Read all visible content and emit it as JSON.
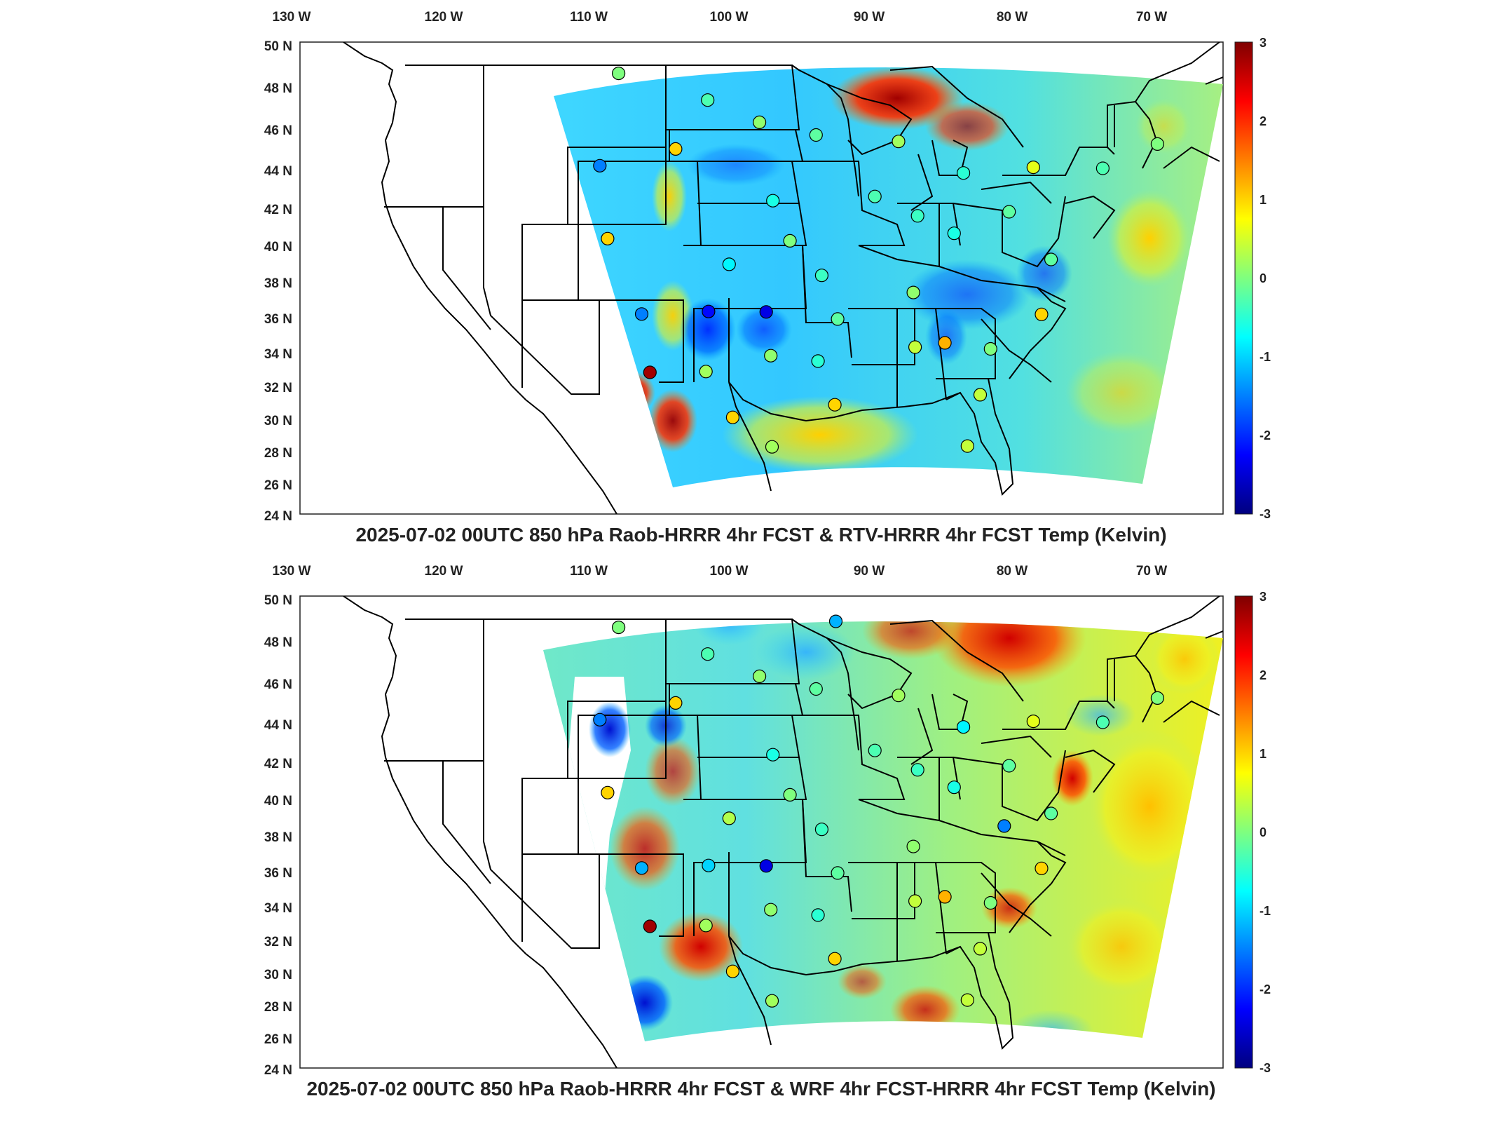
{
  "colors": {
    "colormap": [
      "#00007f",
      "#0000ff",
      "#007fff",
      "#00ffff",
      "#7fff7f",
      "#ffff00",
      "#ff7f00",
      "#ff0000",
      "#7f0000"
    ],
    "neutral": "#ffffff",
    "frame": "#222222",
    "borders": "#000000"
  },
  "panels": [
    {
      "title": "2025-07-02 00UTC 850 hPa Raob-HRRR 4hr FCST & RTV-HRRR 4hr FCST Temp (Kelvin)",
      "lon_labels": [
        "130 W",
        "120 W",
        "110 W",
        "100 W",
        "90 W",
        "80 W",
        "70 W"
      ],
      "lat_labels": [
        "50 N",
        "48 N",
        "46 N",
        "44 N",
        "42 N",
        "40 N",
        "38 N",
        "36 N",
        "34 N",
        "32 N",
        "30 N",
        "28 N",
        "26 N",
        "24 N"
      ],
      "colorbar": {
        "min": -3,
        "max": 3,
        "tick_labels": [
          "3",
          "2",
          "1",
          "0",
          "-1",
          "-2",
          "-3"
        ]
      },
      "stations": [
        {
          "lon": -106.6,
          "lat": 48.2,
          "value": 0.0
        },
        {
          "lon": -100.8,
          "lat": 46.8,
          "value": -0.3
        },
        {
          "lon": -97.4,
          "lat": 45.6,
          "value": 0.1
        },
        {
          "lon": -93.6,
          "lat": 44.9,
          "value": -0.2
        },
        {
          "lon": -108.5,
          "lat": 43.1,
          "value": -1.5
        },
        {
          "lon": -103.2,
          "lat": 44.1,
          "value": 1.0
        },
        {
          "lon": -88.0,
          "lat": 44.5,
          "value": 0.2
        },
        {
          "lon": -83.5,
          "lat": 42.7,
          "value": -0.5
        },
        {
          "lon": -78.7,
          "lat": 42.9,
          "value": 0.6
        },
        {
          "lon": -73.9,
          "lat": 42.7,
          "value": -0.3
        },
        {
          "lon": -70.3,
          "lat": 43.9,
          "value": 0.0
        },
        {
          "lon": -96.7,
          "lat": 41.3,
          "value": -0.6
        },
        {
          "lon": -89.6,
          "lat": 41.5,
          "value": -0.3
        },
        {
          "lon": -86.6,
          "lat": 40.4,
          "value": -0.4
        },
        {
          "lon": -80.2,
          "lat": 40.5,
          "value": -0.2
        },
        {
          "lon": -108.5,
          "lat": 39.1,
          "value": 1.0
        },
        {
          "lon": -95.6,
          "lat": 39.1,
          "value": 0.0
        },
        {
          "lon": -84.0,
          "lat": 39.4,
          "value": -0.6
        },
        {
          "lon": -100.0,
          "lat": 37.8,
          "value": -0.8
        },
        {
          "lon": -77.0,
          "lat": 37.8,
          "value": -0.2
        },
        {
          "lon": -93.4,
          "lat": 37.2,
          "value": -0.4
        },
        {
          "lon": -86.8,
          "lat": 36.2,
          "value": 0.1
        },
        {
          "lon": -106.6,
          "lat": 35.0,
          "value": -1.5
        },
        {
          "lon": -101.7,
          "lat": 35.2,
          "value": -2.2
        },
        {
          "lon": -97.5,
          "lat": 35.2,
          "value": -2.4
        },
        {
          "lon": -92.3,
          "lat": 34.8,
          "value": -0.2
        },
        {
          "lon": -77.4,
          "lat": 34.8,
          "value": 1.0
        },
        {
          "lon": -86.6,
          "lat": 33.2,
          "value": 0.4
        },
        {
          "lon": -84.4,
          "lat": 33.4,
          "value": 1.2
        },
        {
          "lon": -97.3,
          "lat": 32.8,
          "value": 0.1
        },
        {
          "lon": -81.0,
          "lat": 33.0,
          "value": 0.0
        },
        {
          "lon": -102.2,
          "lat": 31.9,
          "value": 0.2
        },
        {
          "lon": -93.8,
          "lat": 32.5,
          "value": -0.5
        },
        {
          "lon": -106.4,
          "lat": 31.8,
          "value": 2.8
        },
        {
          "lon": -100.4,
          "lat": 29.4,
          "value": 1.0
        },
        {
          "lon": -92.6,
          "lat": 30.1,
          "value": 1.0
        },
        {
          "lon": -81.6,
          "lat": 30.5,
          "value": 0.4
        },
        {
          "lon": -97.5,
          "lat": 27.8,
          "value": 0.2
        },
        {
          "lon": -82.4,
          "lat": 27.7,
          "value": 0.4
        }
      ]
    },
    {
      "title": "2025-07-02 00UTC 850 hPa Raob-HRRR 4hr FCST & WRF 4hr FCST-HRRR 4hr FCST Temp (Kelvin)",
      "lon_labels": [
        "130 W",
        "120 W",
        "110 W",
        "100 W",
        "90 W",
        "80 W",
        "70 W"
      ],
      "lat_labels": [
        "50 N",
        "48 N",
        "46 N",
        "44 N",
        "42 N",
        "40 N",
        "38 N",
        "36 N",
        "34 N",
        "32 N",
        "30 N",
        "28 N",
        "26 N",
        "24 N"
      ],
      "colorbar": {
        "min": -3,
        "max": 3,
        "tick_labels": [
          "3",
          "2",
          "1",
          "0",
          "-1",
          "-2",
          "-3"
        ]
      },
      "stations": [
        {
          "lon": -106.6,
          "lat": 48.2,
          "value": 0.0
        },
        {
          "lon": -100.8,
          "lat": 46.8,
          "value": -0.3
        },
        {
          "lon": -97.4,
          "lat": 45.6,
          "value": 0.1
        },
        {
          "lon": -93.6,
          "lat": 44.9,
          "value": -0.2
        },
        {
          "lon": -92.2,
          "lat": 48.6,
          "value": -1.2
        },
        {
          "lon": -108.5,
          "lat": 43.1,
          "value": -1.5
        },
        {
          "lon": -103.2,
          "lat": 44.1,
          "value": 1.0
        },
        {
          "lon": -88.0,
          "lat": 44.5,
          "value": 0.2
        },
        {
          "lon": -83.5,
          "lat": 42.7,
          "value": -0.8
        },
        {
          "lon": -78.7,
          "lat": 42.9,
          "value": 0.6
        },
        {
          "lon": -73.9,
          "lat": 42.7,
          "value": -0.3
        },
        {
          "lon": -70.3,
          "lat": 43.9,
          "value": 0.0
        },
        {
          "lon": -96.7,
          "lat": 41.3,
          "value": -0.6
        },
        {
          "lon": -89.6,
          "lat": 41.5,
          "value": -0.3
        },
        {
          "lon": -86.6,
          "lat": 40.4,
          "value": -0.4
        },
        {
          "lon": -80.2,
          "lat": 40.5,
          "value": -0.2
        },
        {
          "lon": -108.5,
          "lat": 39.1,
          "value": 1.0
        },
        {
          "lon": -95.6,
          "lat": 39.1,
          "value": 0.0
        },
        {
          "lon": -84.0,
          "lat": 39.4,
          "value": -0.6
        },
        {
          "lon": -100.0,
          "lat": 37.8,
          "value": 0.3
        },
        {
          "lon": -77.0,
          "lat": 37.8,
          "value": -0.2
        },
        {
          "lon": -93.4,
          "lat": 37.2,
          "value": -0.4
        },
        {
          "lon": -86.8,
          "lat": 36.2,
          "value": 0.1
        },
        {
          "lon": -80.3,
          "lat": 37.2,
          "value": -1.5
        },
        {
          "lon": -106.6,
          "lat": 35.0,
          "value": -1.2
        },
        {
          "lon": -101.7,
          "lat": 35.2,
          "value": -1.0
        },
        {
          "lon": -97.5,
          "lat": 35.2,
          "value": -2.4
        },
        {
          "lon": -92.3,
          "lat": 34.8,
          "value": -0.2
        },
        {
          "lon": -77.4,
          "lat": 34.8,
          "value": 1.0
        },
        {
          "lon": -86.6,
          "lat": 33.2,
          "value": 0.4
        },
        {
          "lon": -84.4,
          "lat": 33.4,
          "value": 1.2
        },
        {
          "lon": -97.3,
          "lat": 32.8,
          "value": 0.1
        },
        {
          "lon": -81.0,
          "lat": 33.0,
          "value": 0.0
        },
        {
          "lon": -102.2,
          "lat": 31.9,
          "value": 0.2
        },
        {
          "lon": -93.8,
          "lat": 32.5,
          "value": -0.5
        },
        {
          "lon": -106.4,
          "lat": 31.8,
          "value": 2.8
        },
        {
          "lon": -100.4,
          "lat": 29.4,
          "value": 1.0
        },
        {
          "lon": -92.6,
          "lat": 30.1,
          "value": 1.0
        },
        {
          "lon": -81.6,
          "lat": 30.5,
          "value": 0.4
        },
        {
          "lon": -97.5,
          "lat": 27.8,
          "value": 0.2
        },
        {
          "lon": -82.4,
          "lat": 27.7,
          "value": 0.4
        }
      ]
    }
  ]
}
